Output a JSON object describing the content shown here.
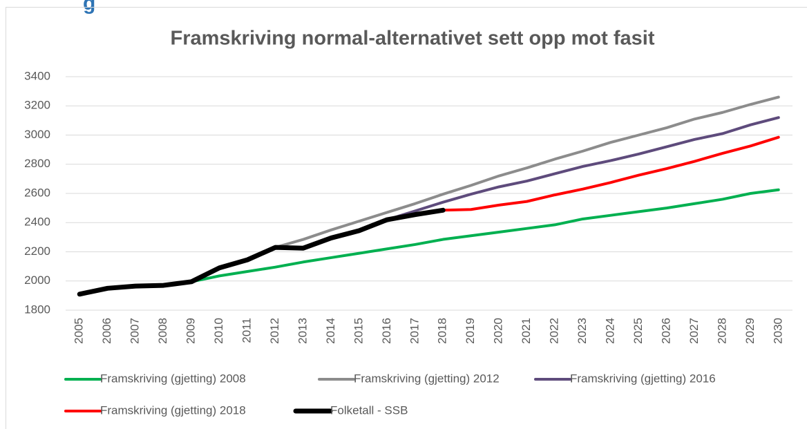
{
  "page_fragment": "g",
  "chart_data": {
    "type": "line",
    "title": "Framskriving normal-alternativet sett opp mot fasit",
    "categories": [
      "2005",
      "2006",
      "2007",
      "2008",
      "2009",
      "2010",
      "2011",
      "2012",
      "2013",
      "2014",
      "2015",
      "2016",
      "2017",
      "2018",
      "2019",
      "2020",
      "2021",
      "2022",
      "2023",
      "2024",
      "2025",
      "2026",
      "2027",
      "2028",
      "2029",
      "2030"
    ],
    "ylim": [
      1800,
      3400
    ],
    "yticks": [
      1800,
      2000,
      2200,
      2400,
      2600,
      2800,
      3000,
      3200,
      3400
    ],
    "grid": true,
    "legend": "bottom",
    "series": [
      {
        "name": "Framskriving  (gjetting) 2008",
        "color": "#00b050",
        "values": [
          null,
          null,
          null,
          1970,
          1995,
          2035,
          2065,
          2095,
          2130,
          2160,
          2190,
          2220,
          2250,
          2285,
          2310,
          2335,
          2360,
          2385,
          2425,
          2450,
          2475,
          2500,
          2530,
          2560,
          2600,
          2625
        ]
      },
      {
        "name": "Framskriving (gjetting) 2012",
        "color": "#8c8c8c",
        "values": [
          null,
          null,
          null,
          null,
          null,
          null,
          null,
          2230,
          2285,
          2350,
          2410,
          2470,
          2530,
          2595,
          2655,
          2720,
          2775,
          2835,
          2890,
          2950,
          3000,
          3050,
          3110,
          3155,
          3210,
          3260
        ]
      },
      {
        "name": "Framskriving (gjetting) 2016",
        "color": "#5e4b7c",
        "values": [
          null,
          null,
          null,
          null,
          null,
          null,
          null,
          null,
          null,
          null,
          null,
          2420,
          2480,
          2540,
          2595,
          2645,
          2685,
          2735,
          2785,
          2825,
          2870,
          2920,
          2970,
          3010,
          3070,
          3120
        ]
      },
      {
        "name": "Framskriving (gjetting) 2018",
        "color": "#ff0000",
        "values": [
          null,
          null,
          null,
          null,
          null,
          null,
          null,
          null,
          null,
          null,
          null,
          null,
          null,
          2485,
          2490,
          2520,
          2545,
          2590,
          2630,
          2675,
          2725,
          2770,
          2820,
          2875,
          2925,
          2985
        ]
      },
      {
        "name": "Folketall - SSB",
        "color": "#000000",
        "values": [
          1910,
          1950,
          1965,
          1970,
          1995,
          2090,
          2145,
          2230,
          2225,
          2295,
          2345,
          2420,
          2455,
          2485,
          null,
          null,
          null,
          null,
          null,
          null,
          null,
          null,
          null,
          null,
          null,
          null
        ]
      }
    ]
  }
}
